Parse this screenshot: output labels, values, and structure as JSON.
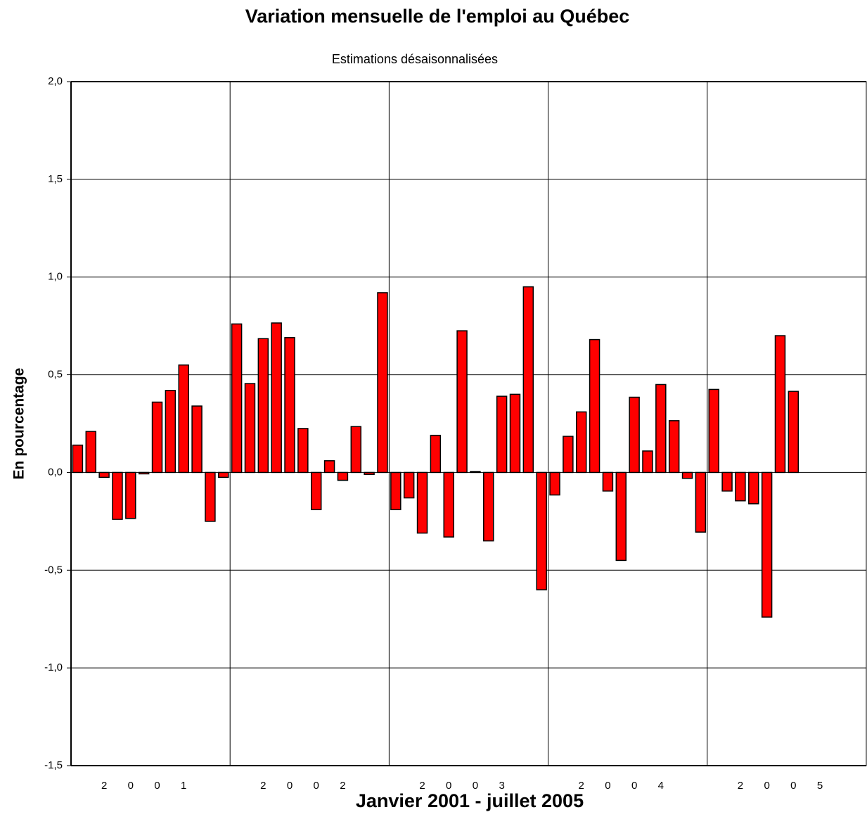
{
  "chart_data": {
    "type": "bar",
    "title": "Variation mensuelle de l'emploi au Québec",
    "subtitle": "Estimations désaisonnalisées",
    "ylabel": "En pourcentage",
    "xlabel": "Janvier 2001 - juillet 2005",
    "color": "#ff0000",
    "grid": true,
    "ylim": [
      -1.5,
      2.0
    ],
    "yticks": [
      {
        "value": -1.5,
        "label": "-1,5"
      },
      {
        "value": -1.0,
        "label": "-1,0"
      },
      {
        "value": -0.5,
        "label": "-0,5"
      },
      {
        "value": 0.0,
        "label": "0,0"
      },
      {
        "value": 0.5,
        "label": "0,5"
      },
      {
        "value": 1.0,
        "label": "1,0"
      },
      {
        "value": 1.5,
        "label": "1,5"
      },
      {
        "value": 2.0,
        "label": "2,0"
      }
    ],
    "categories": [
      null,
      null,
      "2",
      null,
      "0",
      null,
      "0",
      null,
      "1",
      null,
      null,
      null,
      null,
      null,
      "2",
      null,
      "0",
      null,
      "0",
      null,
      "2",
      null,
      null,
      null,
      null,
      null,
      "2",
      null,
      "0",
      null,
      "0",
      null,
      "3",
      null,
      null,
      null,
      null,
      null,
      "2",
      null,
      "0",
      null,
      "0",
      null,
      "4",
      null,
      null,
      null,
      null,
      null,
      "2",
      null,
      "0",
      null,
      "0",
      null,
      "5",
      null,
      null,
      null
    ],
    "values": [
      0.14,
      0.21,
      -0.025,
      -0.24,
      -0.235,
      -0.007,
      0.36,
      0.42,
      0.55,
      0.34,
      -0.25,
      -0.025,
      0.76,
      0.455,
      0.685,
      0.765,
      0.69,
      0.225,
      -0.19,
      0.06,
      -0.04,
      0.235,
      -0.01,
      0.92,
      -0.19,
      -0.13,
      -0.31,
      0.19,
      -0.33,
      0.725,
      0.005,
      -0.35,
      0.39,
      0.4,
      0.95,
      -0.6,
      -0.115,
      0.185,
      0.31,
      0.68,
      -0.095,
      -0.45,
      0.385,
      0.11,
      0.45,
      0.265,
      -0.03,
      -0.305,
      0.425,
      -0.095,
      -0.145,
      -0.16,
      -0.74,
      0.7,
      0.415,
      null,
      null,
      null,
      null,
      null
    ]
  }
}
